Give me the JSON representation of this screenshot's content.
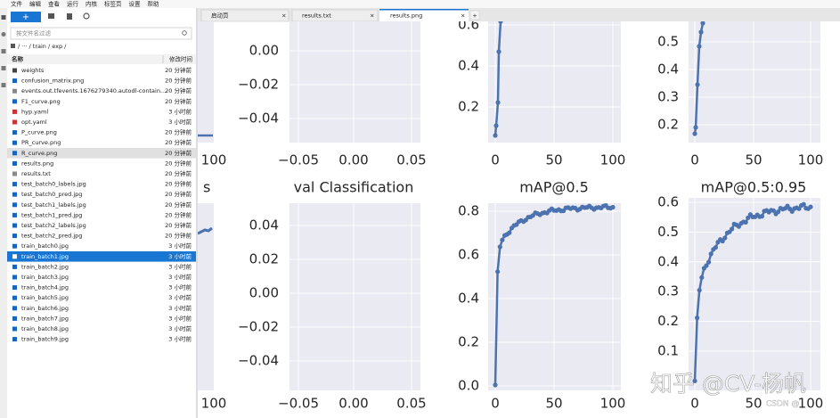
{
  "menu": [
    "文件",
    "编辑",
    "查看",
    "运行",
    "内核",
    "标签页",
    "设置",
    "帮助"
  ],
  "file_browser": {
    "new_button": "+",
    "filter_placeholder": "按文件名过滤",
    "breadcrumb": "/ ··· / train / exp /",
    "columns": [
      "名称",
      "修改时间"
    ],
    "files": [
      {
        "name": "weights",
        "modified": "20 分钟前"
      },
      {
        "name": "confusion_matrix.png",
        "modified": "20 分钟前"
      },
      {
        "name": "events.out.tfevents.1676279340.autodl-contain...",
        "modified": "20 分钟前"
      },
      {
        "name": "F1_curve.png",
        "modified": "20 分钟前"
      },
      {
        "name": "hyp.yaml",
        "modified": "3 小时前"
      },
      {
        "name": "opt.yaml",
        "modified": "3 小时前"
      },
      {
        "name": "P_curve.png",
        "modified": "20 分钟前"
      },
      {
        "name": "PR_curve.png",
        "modified": "20 分钟前"
      },
      {
        "name": "R_curve.png",
        "modified": "20 分钟前"
      },
      {
        "name": "results.png",
        "modified": "20 分钟前"
      },
      {
        "name": "results.txt",
        "modified": "20 分钟前"
      },
      {
        "name": "test_batch0_labels.jpg",
        "modified": "20 分钟前"
      },
      {
        "name": "test_batch0_pred.jpg",
        "modified": "20 分钟前"
      },
      {
        "name": "test_batch1_labels.jpg",
        "modified": "20 分钟前"
      },
      {
        "name": "test_batch1_pred.jpg",
        "modified": "20 分钟前"
      },
      {
        "name": "test_batch2_labels.jpg",
        "modified": "20 分钟前"
      },
      {
        "name": "test_batch2_pred.jpg",
        "modified": "20 分钟前"
      },
      {
        "name": "train_batch0.jpg",
        "modified": "3 小时前"
      },
      {
        "name": "train_batch1.jpg",
        "modified": "3 小时前"
      },
      {
        "name": "train_batch2.jpg",
        "modified": "3 小时前"
      },
      {
        "name": "train_batch3.jpg",
        "modified": "3 小时前"
      },
      {
        "name": "train_batch4.jpg",
        "modified": "3 小时前"
      },
      {
        "name": "train_batch5.jpg",
        "modified": "3 小时前"
      },
      {
        "name": "train_batch6.jpg",
        "modified": "3 小时前"
      },
      {
        "name": "train_batch7.jpg",
        "modified": "3 小时前"
      },
      {
        "name": "train_batch8.jpg",
        "modified": "3 小时前"
      },
      {
        "name": "train_batch9.jpg",
        "modified": "3 小时前"
      }
    ]
  },
  "tabs": [
    "启动页",
    "results.txt",
    "results.png"
  ],
  "image": {
    "left_fragments": {
      "title": "s",
      "xtick_top": "100",
      "xtick_bottom": "100"
    },
    "panels": [
      {
        "yticks": [
          "0.00",
          "−0.02",
          "−0.04"
        ],
        "xticks": [
          "−0.05",
          "0.00",
          "0.05"
        ]
      },
      {
        "yticks": [
          "0.6",
          "0.4",
          "0.2"
        ],
        "xticks": [
          "0",
          "50",
          "100"
        ]
      },
      {
        "yticks": [
          "0.5",
          "0.4",
          "0.3",
          "0.2"
        ],
        "xticks": [
          "0",
          "50",
          "100"
        ]
      },
      {
        "title": "val Classification",
        "yticks": [
          "0.04",
          "0.02",
          "0.00",
          "−0.02",
          "−0.04"
        ],
        "xticks": [
          "−0.05",
          "0.00",
          "0.05"
        ]
      },
      {
        "title": "mAP@0.5",
        "yticks": [
          "0.8",
          "0.6",
          "0.4",
          "0.2",
          "0.0"
        ],
        "xticks": [
          "0",
          "50",
          "100"
        ]
      },
      {
        "title": "mAP@0.5:0.95",
        "yticks": [
          "0.6",
          "0.5",
          "0.4",
          "0.3",
          "0.2",
          "0.1"
        ],
        "xticks": [
          "0",
          "50",
          "100"
        ]
      }
    ],
    "watermark": "知乎 @CV-杨帆",
    "watermark_small": "CSDN @"
  }
}
